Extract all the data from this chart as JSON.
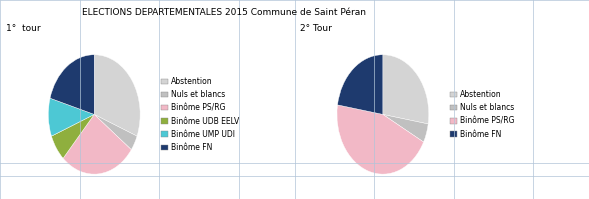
{
  "title": "ELECTIONS DEPARTEMENTALES 2015 Commune de Saint Péran",
  "subtitle1": "1°  tour",
  "subtitle2": "2° Tour",
  "pie1_labels": [
    "Abstention",
    "Nuls et blancs",
    "Binôme PS/RG",
    "Binôme UDB EELV",
    "Binôme UMP UDI",
    "Binôme FN"
  ],
  "pie1_values": [
    30,
    4,
    26,
    7,
    10,
    20
  ],
  "pie1_colors": [
    "#d4d4d4",
    "#c0c0c0",
    "#f2b8c6",
    "#8faf3e",
    "#4dc8d4",
    "#1e3a6e"
  ],
  "pie2_labels": [
    "Abstention",
    "Nuls et blancs",
    "Binôme PS/RG",
    "Binôme FN"
  ],
  "pie2_values": [
    27,
    5,
    44,
    22
  ],
  "pie2_colors": [
    "#d4d4d4",
    "#c0c0c0",
    "#f2b8c6",
    "#1e3a6e"
  ],
  "background_color": "#ffffff",
  "text_color": "#000000",
  "title_fontsize": 6.5,
  "subtitle_fontsize": 6.5,
  "legend_fontsize": 5.5,
  "startangle1": 90,
  "startangle2": 90,
  "grid_color": "#b0c4d8",
  "grid_linewidth": 0.5
}
